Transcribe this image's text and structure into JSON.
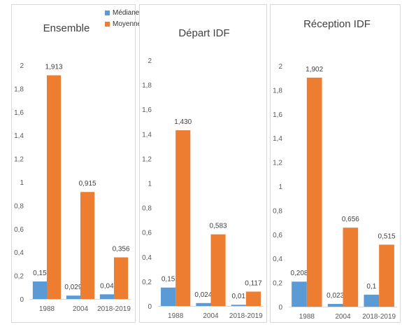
{
  "legend": {
    "median_label": "Médiane",
    "mean_label": "Moyenne"
  },
  "colors": {
    "median": "#5b9bd5",
    "mean": "#ed7d31",
    "axis_text": "#595959",
    "label_text": "#404040",
    "title_text": "#404040"
  },
  "chart_data": [
    {
      "type": "bar",
      "title": "Ensemble",
      "categories": [
        "1988",
        "2004",
        "2018-2019"
      ],
      "ylim": [
        0,
        2
      ],
      "yticks": [
        "0",
        "0,2",
        "0,4",
        "0,6",
        "0,8",
        "1",
        "1,2",
        "1,4",
        "1,6",
        "1,8",
        "2"
      ],
      "grid": false,
      "series": [
        {
          "name": "Médiane",
          "values": [
            0.15,
            0.029,
            0.04
          ],
          "labels": [
            "0,15",
            "0,029",
            "0,04"
          ]
        },
        {
          "name": "Moyenne",
          "values": [
            1.913,
            0.915,
            0.356
          ],
          "labels": [
            "1,913",
            "0,915",
            "0,356"
          ]
        }
      ]
    },
    {
      "type": "bar",
      "title": "Départ IDF",
      "categories": [
        "1988",
        "2004",
        "2018-2019"
      ],
      "ylim": [
        0,
        2
      ],
      "yticks": [
        "0",
        "0,2",
        "0,4",
        "0,6",
        "0,8",
        "1",
        "1,2",
        "1,4",
        "1,6",
        "1,8",
        "2"
      ],
      "grid": false,
      "series": [
        {
          "name": "Médiane",
          "values": [
            0.15,
            0.024,
            0.01
          ],
          "labels": [
            "0,15",
            "0,024",
            "0,01"
          ]
        },
        {
          "name": "Moyenne",
          "values": [
            1.43,
            0.583,
            0.117
          ],
          "labels": [
            "1,430",
            "0,583",
            "0,117"
          ]
        }
      ]
    },
    {
      "type": "bar",
      "title": "Réception IDF",
      "categories": [
        "1988",
        "2004",
        "2018-2019"
      ],
      "ylim": [
        0,
        2
      ],
      "yticks": [
        "0",
        "0,2",
        "0,4",
        "0,6",
        "0,8",
        "1",
        "1,2",
        "1,4",
        "1,6",
        "1,8",
        "2"
      ],
      "grid": false,
      "series": [
        {
          "name": "Médiane",
          "values": [
            0.208,
            0.023,
            0.1
          ],
          "labels": [
            "0,208",
            "0,023",
            "0,1"
          ]
        },
        {
          "name": "Moyenne",
          "values": [
            1.902,
            0.656,
            0.515
          ],
          "labels": [
            "1,902",
            "0,656",
            "0,515"
          ]
        }
      ]
    }
  ]
}
